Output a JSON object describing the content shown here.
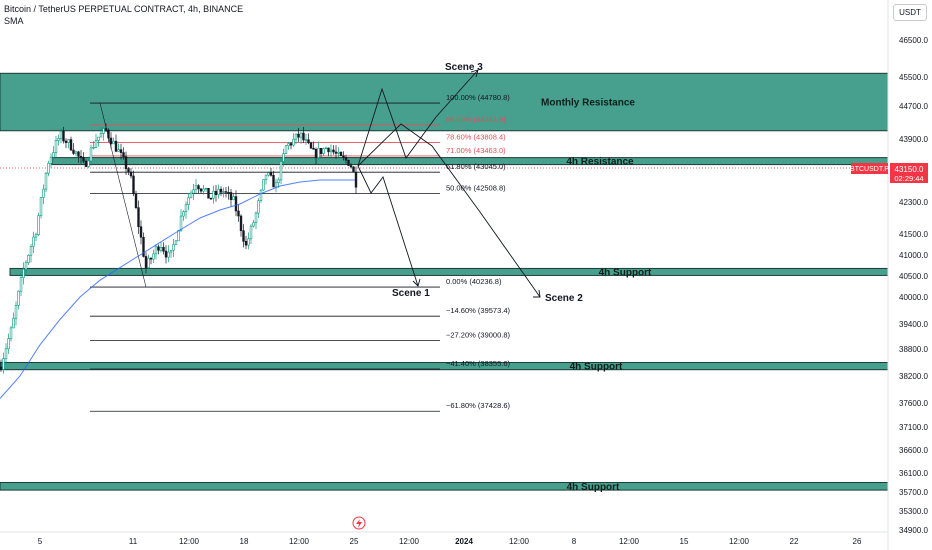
{
  "header": {
    "title": "Bitcoin / TetherUS PERPETUAL CONTRACT, 4h, BINANCE",
    "indicator": "SMA",
    "currency": "USDT"
  },
  "price_tag": {
    "symbol": "BTCUSDT.P",
    "value": "43150.0",
    "countdown": "02:29:44"
  },
  "chart_data": {
    "type": "candlestick",
    "price_axis": {
      "ticks": [
        "46500.0",
        "45500.0",
        "44700.0",
        "43900.0",
        "43100.0",
        "42300.0",
        "41500.0",
        "41000.0",
        "40500.0",
        "40000.0",
        "39400.0",
        "38800.0",
        "38200.0",
        "37600.0",
        "37100.0",
        "36600.0",
        "36100.0",
        "35700.0",
        "35300.0",
        "34900.0"
      ],
      "range": [
        34900,
        46900
      ]
    },
    "time_axis": {
      "ticks": [
        "5",
        "11",
        "12:00",
        "18",
        "12:00",
        "25",
        "12:00",
        "2024",
        "12:00",
        "8",
        "12:00",
        "15",
        "12:00",
        "22",
        "26"
      ]
    },
    "zones": [
      {
        "label": "Monthly Resistance",
        "low": 44100,
        "high": 45600
      },
      {
        "label": "4h Resistance",
        "low": 43280,
        "high": 43420
      },
      {
        "label": "4h Support",
        "low": 40560,
        "high": 40680
      },
      {
        "label": "4h Support",
        "low": 38340,
        "high": 38500
      },
      {
        "label": "4h Support",
        "low": 35740,
        "high": 35900
      }
    ],
    "fib_levels": [
      {
        "label": "100.00% (44780.8)",
        "price": 44780.8
      },
      {
        "label": "88.60% (44243.9)",
        "price": 44243.9
      },
      {
        "label": "78.60% (43808.4)",
        "price": 43808.4
      },
      {
        "label": "71.00% (43463.0)",
        "price": 43463.0
      },
      {
        "label": "61.80% (43045.0)",
        "price": 43045.0
      },
      {
        "label": "50.00% (42508.8)",
        "price": 42508.8
      },
      {
        "label": "0.00% (40236.8)",
        "price": 40236.8
      },
      {
        "label": "−14.60% (39573.4)",
        "price": 39573.4
      },
      {
        "label": "−27.20% (39000.8)",
        "price": 39000.8
      },
      {
        "label": "−41.40% (38355.6)",
        "price": 38355.6
      },
      {
        "label": "−61.80% (37428.6)",
        "price": 37428.6
      }
    ],
    "scenarios": [
      "Scene 1",
      "Scene 2",
      "Scene 3"
    ],
    "indicator": "SMA"
  }
}
